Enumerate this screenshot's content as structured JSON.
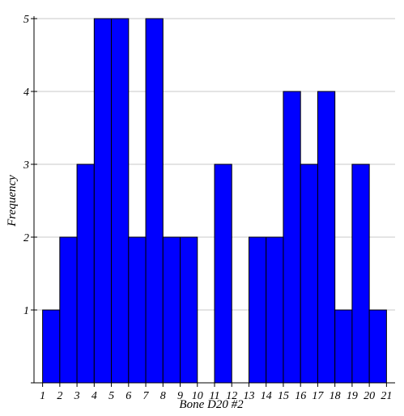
{
  "chart_data": {
    "type": "bar",
    "title": "",
    "xlabel": "Bone D20 #2",
    "ylabel": "Frequency",
    "x_ticks": [
      1,
      2,
      3,
      4,
      5,
      6,
      7,
      8,
      9,
      10,
      11,
      12,
      13,
      14,
      15,
      16,
      17,
      18,
      19,
      20,
      21
    ],
    "y_ticks": [
      1,
      2,
      3,
      4,
      5
    ],
    "ylim": [
      0,
      5
    ],
    "xlim": [
      0.5,
      21.5
    ],
    "bar_color": "#0000ff",
    "bar_edge_color": "#000000",
    "grid": true,
    "bins": [
      {
        "start": 1,
        "end": 2,
        "count": 1
      },
      {
        "start": 2,
        "end": 3,
        "count": 2
      },
      {
        "start": 3,
        "end": 4,
        "count": 3
      },
      {
        "start": 4,
        "end": 5,
        "count": 5
      },
      {
        "start": 5,
        "end": 6,
        "count": 5
      },
      {
        "start": 6,
        "end": 7,
        "count": 2
      },
      {
        "start": 7,
        "end": 8,
        "count": 5
      },
      {
        "start": 8,
        "end": 9,
        "count": 2
      },
      {
        "start": 9,
        "end": 10,
        "count": 2
      },
      {
        "start": 10,
        "end": 11,
        "count": 0
      },
      {
        "start": 11,
        "end": 12,
        "count": 3
      },
      {
        "start": 12,
        "end": 13,
        "count": 0
      },
      {
        "start": 13,
        "end": 14,
        "count": 2
      },
      {
        "start": 14,
        "end": 15,
        "count": 2
      },
      {
        "start": 15,
        "end": 16,
        "count": 4
      },
      {
        "start": 16,
        "end": 17,
        "count": 3
      },
      {
        "start": 17,
        "end": 18,
        "count": 4
      },
      {
        "start": 18,
        "end": 19,
        "count": 1
      },
      {
        "start": 19,
        "end": 20,
        "count": 3
      },
      {
        "start": 20,
        "end": 21,
        "count": 1
      }
    ]
  }
}
